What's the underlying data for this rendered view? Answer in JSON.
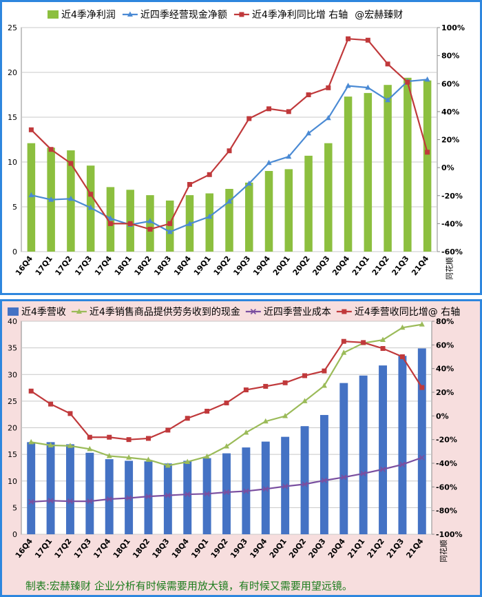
{
  "chart_data": [
    {
      "type": "bar",
      "categories": [
        "16Q4",
        "17Q1",
        "17Q2",
        "17Q3",
        "17Q4",
        "18Q1",
        "18Q2",
        "18Q3",
        "18Q4",
        "19Q1",
        "19Q2",
        "19Q3",
        "19Q4",
        "20Q1",
        "20Q2",
        "20Q3",
        "20Q4",
        "21Q1",
        "21Q2",
        "21Q3",
        "21Q4"
      ],
      "source_label": "同花顺",
      "legend_title": "@宏赫臻财",
      "ylim": [
        0,
        25
      ],
      "y_ticks": [
        "0",
        "5",
        "10",
        "15",
        "20",
        "25"
      ],
      "y2lim": [
        -60,
        100
      ],
      "y2_ticks": [
        "-60%",
        "-40%",
        "-20%",
        "0%",
        "20%",
        "40%",
        "60%",
        "80%",
        "100%"
      ],
      "series": [
        {
          "name": "近4季净利润",
          "kind": "bar",
          "axis": "left",
          "color": "#8cbf3f",
          "values": [
            12.1,
            11.6,
            11.3,
            9.6,
            7.2,
            6.9,
            6.3,
            5.7,
            6.3,
            6.5,
            7.0,
            7.7,
            9.0,
            9.2,
            10.7,
            12.1,
            17.3,
            17.7,
            18.6,
            19.4,
            19.1
          ]
        },
        {
          "name": "近四季经营现金净额",
          "kind": "line",
          "axis": "left",
          "color": "#4a8ad4",
          "marker": "triangle",
          "values": [
            6.3,
            5.8,
            5.9,
            4.9,
            3.7,
            3.0,
            3.4,
            2.2,
            3.1,
            3.9,
            5.6,
            7.6,
            9.9,
            10.6,
            13.2,
            14.9,
            18.5,
            18.3,
            16.9,
            19.0,
            19.2
          ]
        },
        {
          "name": "近4季净利同比增 右轴",
          "kind": "line",
          "axis": "right",
          "color": "#c0393b",
          "marker": "square",
          "values": [
            27,
            13,
            3,
            -19,
            -40,
            -40,
            -44,
            -40,
            -12,
            -5,
            12,
            35,
            42,
            40,
            52,
            57,
            92,
            91,
            74,
            61,
            11
          ]
        }
      ]
    },
    {
      "type": "bar",
      "categories": [
        "16Q4",
        "17Q1",
        "17Q2",
        "17Q3",
        "17Q4",
        "18Q1",
        "18Q2",
        "18Q3",
        "18Q4",
        "19Q1",
        "19Q2",
        "19Q3",
        "19Q4",
        "20Q1",
        "20Q2",
        "20Q3",
        "20Q4",
        "21Q1",
        "21Q2",
        "21Q3",
        "21Q4"
      ],
      "source_label": "同花顺",
      "ylim": [
        0,
        40
      ],
      "y_ticks": [
        "0",
        "5",
        "10",
        "15",
        "20",
        "25",
        "30",
        "35",
        "40"
      ],
      "y2lim": [
        -100,
        80
      ],
      "y2_ticks": [
        "-100%",
        "-80%",
        "-60%",
        "-40%",
        "-20%",
        "0%",
        "20%",
        "40%",
        "60%",
        "80%"
      ],
      "series": [
        {
          "name": "近4季营收",
          "kind": "bar",
          "axis": "left",
          "color": "#4472c4",
          "values": [
            17.3,
            17.3,
            16.9,
            15.3,
            14.1,
            13.8,
            13.7,
            13.3,
            13.8,
            14.3,
            15.2,
            16.3,
            17.4,
            18.3,
            20.3,
            22.4,
            28.4,
            29.8,
            31.7,
            33.5,
            34.9
          ]
        },
        {
          "name": "近4季销售商品提供劳务收到的现金",
          "kind": "line",
          "axis": "left",
          "color": "#9bbb59",
          "marker": "triangle",
          "values": [
            17.3,
            16.7,
            16.6,
            16.0,
            14.7,
            14.4,
            14.0,
            12.9,
            13.6,
            14.6,
            16.5,
            19.1,
            21.2,
            22.2,
            25.0,
            27.9,
            34.1,
            35.9,
            36.5,
            38.8,
            39.4
          ]
        },
        {
          "name": "近四季营业成本",
          "kind": "line",
          "axis": "left",
          "color": "#7a4fa0",
          "marker": "x",
          "values": [
            6.1,
            6.3,
            6.2,
            6.2,
            6.6,
            6.8,
            7.1,
            7.3,
            7.5,
            7.6,
            7.9,
            8.1,
            8.5,
            9.0,
            9.4,
            10.1,
            10.7,
            11.4,
            12.2,
            13.1,
            14.4
          ]
        },
        {
          "name": "近4季营收同比增@ 右轴",
          "kind": "line",
          "axis": "right",
          "color": "#c0393b",
          "marker": "square",
          "values": [
            21,
            10,
            2,
            -18,
            -18,
            -20,
            -19,
            -12,
            -2,
            4,
            11,
            22,
            25,
            28,
            34,
            38,
            63,
            62,
            57,
            50,
            24
          ]
        }
      ]
    }
  ],
  "footer": {
    "note": "制表:宏赫臻财   企业分析有时候需要用放大镜，有时候又需要用望远镜。"
  }
}
